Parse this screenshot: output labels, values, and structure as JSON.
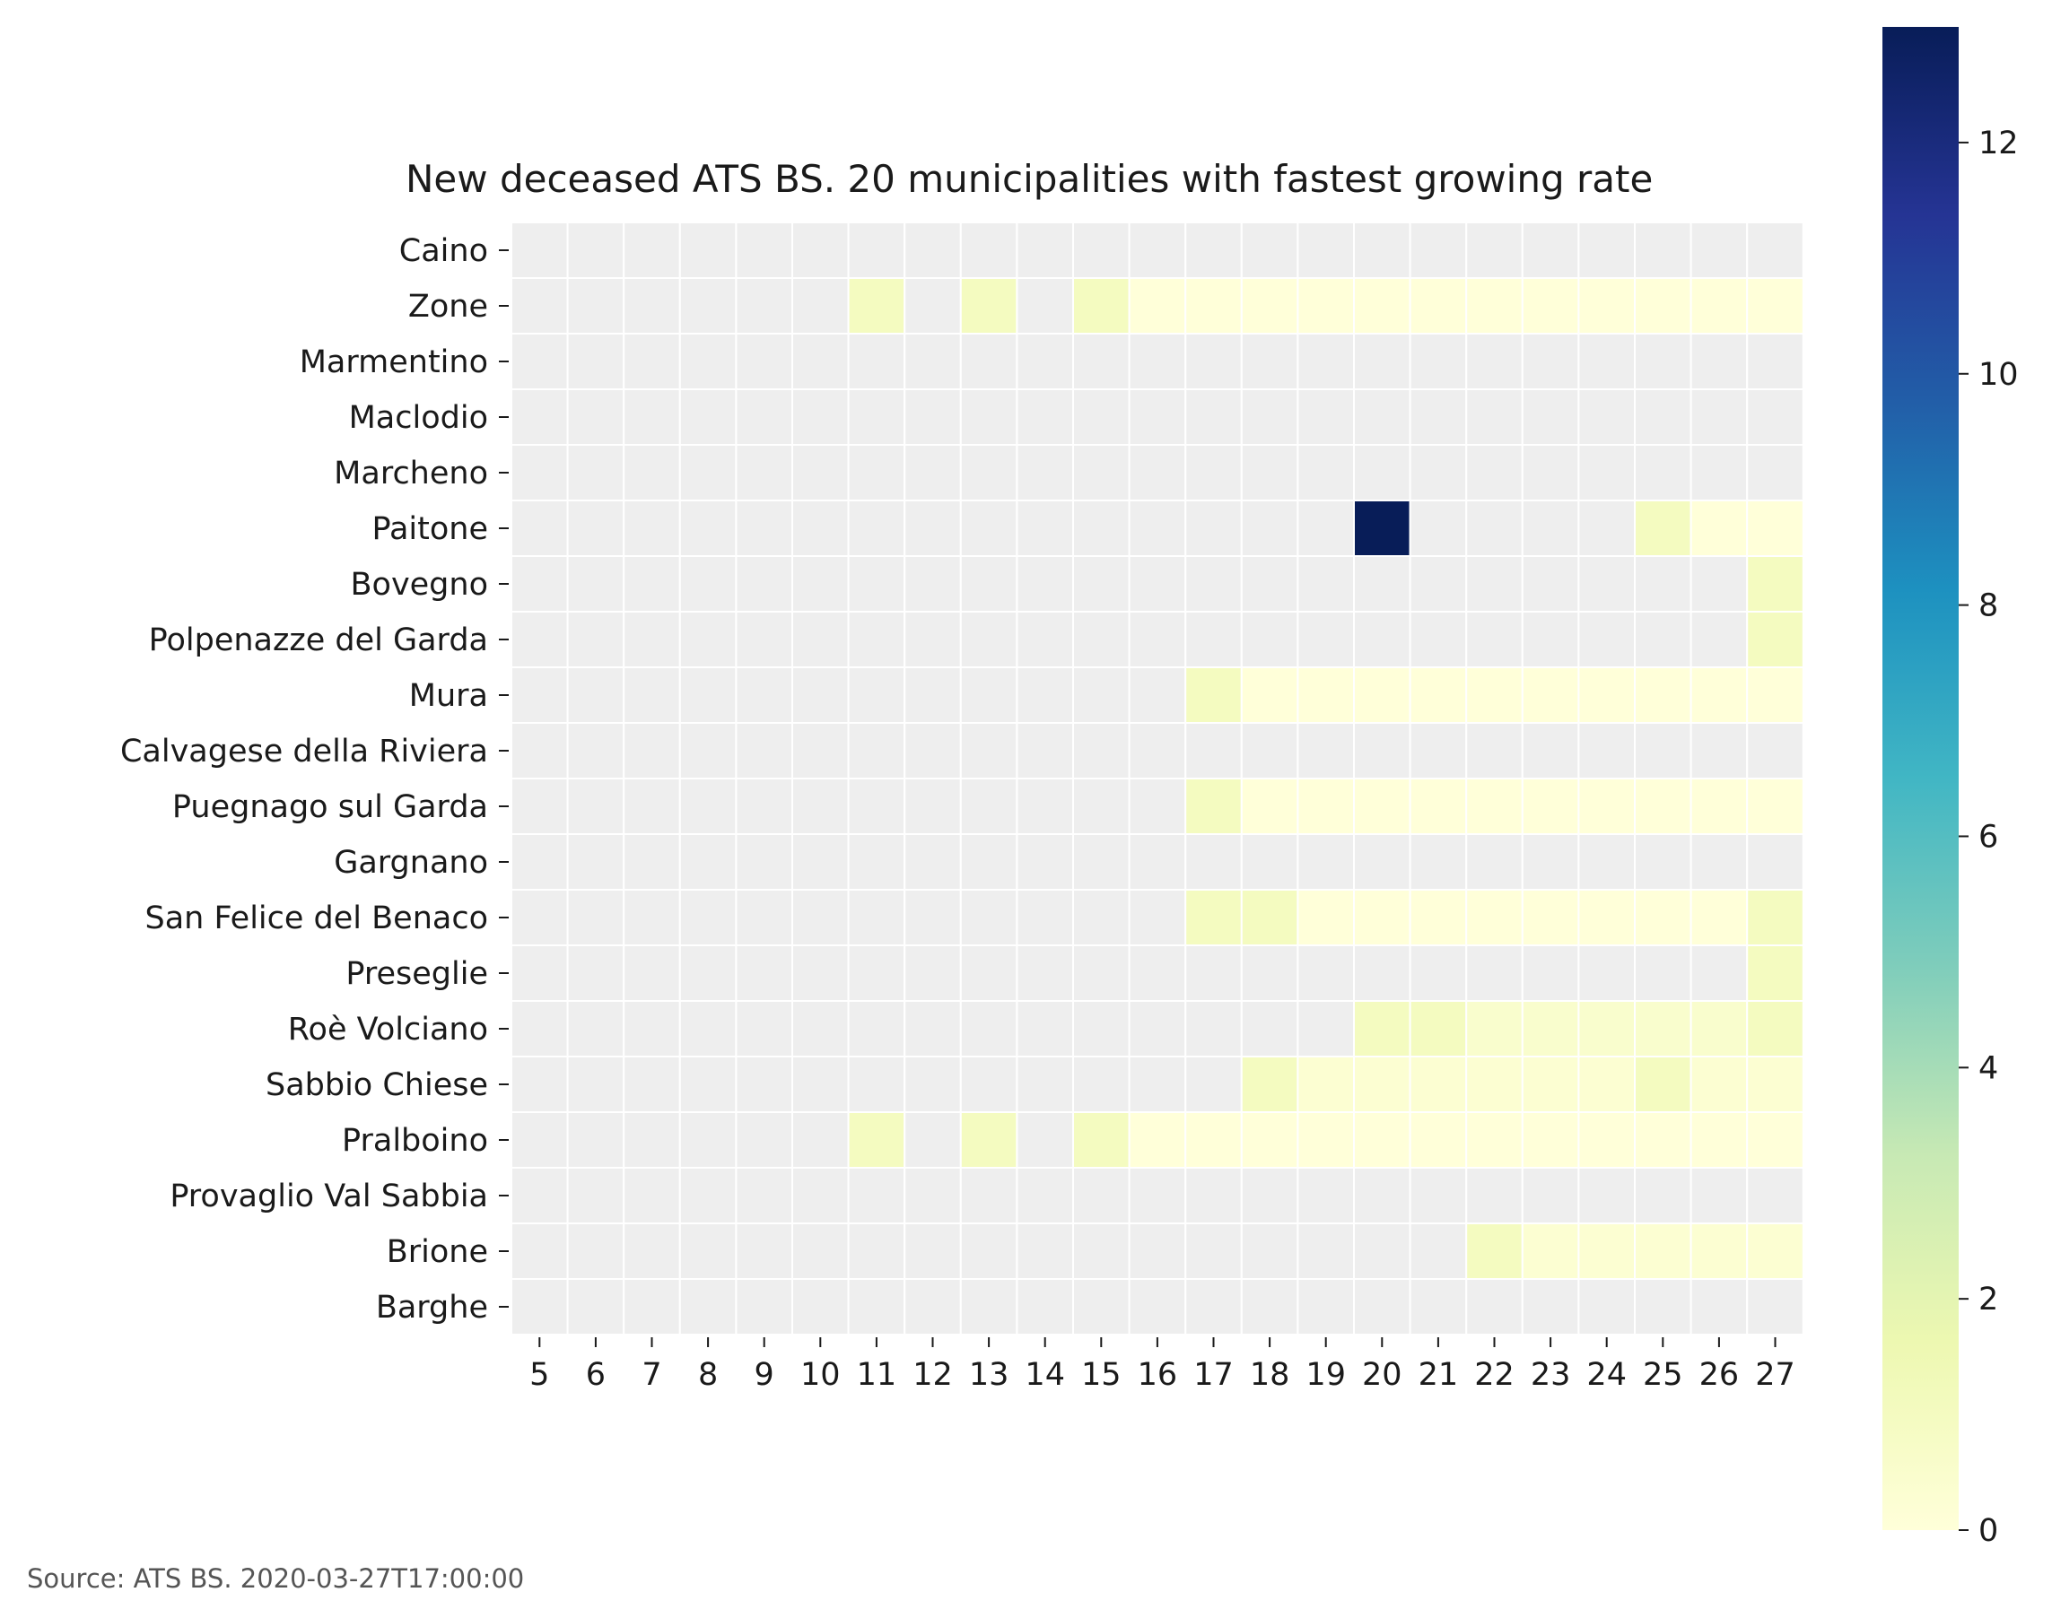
{
  "chart_data": {
    "type": "heatmap",
    "title": "New deceased ATS BS. 20 municipalities with fastest growing rate",
    "xlabel": "",
    "ylabel": "",
    "x": [
      "5",
      "6",
      "7",
      "8",
      "9",
      "10",
      "11",
      "12",
      "13",
      "14",
      "15",
      "16",
      "17",
      "18",
      "19",
      "20",
      "21",
      "22",
      "23",
      "24",
      "25",
      "26",
      "27"
    ],
    "y": [
      "Caino",
      "Zone",
      "Marmentino",
      "Maclodio",
      "Marcheno",
      "Paitone",
      "Bovegno",
      "Polpenazze del Garda",
      "Mura",
      "Calvagese della Riviera",
      "Puegnago sul Garda",
      "Gargnano",
      "San Felice del Benaco",
      "Preseglie",
      "Roè Volciano",
      "Sabbio Chiese",
      "Pralboino",
      "Provaglio Val Sabbia",
      "Brione",
      "Barghe"
    ],
    "values": [
      [
        null,
        null,
        null,
        null,
        null,
        null,
        null,
        null,
        null,
        null,
        null,
        null,
        null,
        null,
        null,
        null,
        null,
        null,
        null,
        null,
        null,
        null,
        null
      ],
      [
        null,
        null,
        null,
        null,
        null,
        null,
        1,
        null,
        1,
        null,
        1,
        0,
        0,
        0,
        0,
        0,
        0,
        0,
        0,
        0,
        0,
        0,
        0
      ],
      [
        null,
        null,
        null,
        null,
        null,
        null,
        null,
        null,
        null,
        null,
        null,
        null,
        null,
        null,
        null,
        null,
        null,
        null,
        null,
        null,
        null,
        null,
        null
      ],
      [
        null,
        null,
        null,
        null,
        null,
        null,
        null,
        null,
        null,
        null,
        null,
        null,
        null,
        null,
        null,
        null,
        null,
        null,
        null,
        null,
        null,
        null,
        null
      ],
      [
        null,
        null,
        null,
        null,
        null,
        null,
        null,
        null,
        null,
        null,
        null,
        null,
        null,
        null,
        null,
        null,
        null,
        null,
        null,
        null,
        null,
        null,
        null
      ],
      [
        null,
        null,
        null,
        null,
        null,
        null,
        null,
        null,
        null,
        null,
        null,
        null,
        null,
        null,
        null,
        13,
        null,
        null,
        null,
        null,
        1,
        0,
        0
      ],
      [
        null,
        null,
        null,
        null,
        null,
        null,
        null,
        null,
        null,
        null,
        null,
        null,
        null,
        null,
        null,
        null,
        null,
        null,
        null,
        null,
        null,
        null,
        1
      ],
      [
        null,
        null,
        null,
        null,
        null,
        null,
        null,
        null,
        null,
        null,
        null,
        null,
        null,
        null,
        null,
        null,
        null,
        null,
        null,
        null,
        null,
        null,
        1
      ],
      [
        null,
        null,
        null,
        null,
        null,
        null,
        null,
        null,
        null,
        null,
        null,
        null,
        1,
        0,
        0,
        0,
        0,
        0,
        0,
        0,
        0,
        0,
        0
      ],
      [
        null,
        null,
        null,
        null,
        null,
        null,
        null,
        null,
        null,
        null,
        null,
        null,
        null,
        null,
        null,
        null,
        null,
        null,
        null,
        null,
        null,
        null,
        null
      ],
      [
        null,
        null,
        null,
        null,
        null,
        null,
        null,
        null,
        null,
        null,
        null,
        null,
        1,
        0,
        0,
        0,
        0,
        0,
        0,
        0,
        0,
        0,
        0
      ],
      [
        null,
        null,
        null,
        null,
        null,
        null,
        null,
        null,
        null,
        null,
        null,
        null,
        null,
        null,
        null,
        null,
        null,
        null,
        null,
        null,
        null,
        null,
        null
      ],
      [
        null,
        null,
        null,
        null,
        null,
        null,
        null,
        null,
        null,
        null,
        null,
        null,
        1,
        1,
        0,
        0,
        0,
        0,
        0,
        0,
        0,
        0,
        1
      ],
      [
        null,
        null,
        null,
        null,
        null,
        null,
        null,
        null,
        null,
        null,
        null,
        null,
        null,
        null,
        null,
        null,
        null,
        null,
        null,
        null,
        null,
        null,
        1
      ],
      [
        null,
        null,
        null,
        null,
        null,
        null,
        null,
        null,
        null,
        null,
        null,
        null,
        null,
        null,
        null,
        1,
        1,
        0.5,
        0.5,
        0.5,
        0.5,
        0.5,
        1
      ],
      [
        null,
        null,
        null,
        null,
        null,
        null,
        null,
        null,
        null,
        null,
        null,
        null,
        null,
        1,
        0.3,
        0.3,
        0.3,
        0.3,
        0.3,
        0.3,
        1,
        0.3,
        0.3
      ],
      [
        null,
        null,
        null,
        null,
        null,
        null,
        1,
        null,
        1,
        null,
        1,
        0,
        0,
        0,
        0,
        0,
        0,
        0,
        0,
        0,
        0,
        0,
        0
      ],
      [
        null,
        null,
        null,
        null,
        null,
        null,
        null,
        null,
        null,
        null,
        null,
        null,
        null,
        null,
        null,
        null,
        null,
        null,
        null,
        null,
        null,
        null,
        null
      ],
      [
        null,
        null,
        null,
        null,
        null,
        null,
        null,
        null,
        null,
        null,
        null,
        null,
        null,
        null,
        null,
        null,
        null,
        1,
        0.3,
        0.3,
        0.3,
        0.3,
        0.3
      ],
      [
        null,
        null,
        null,
        null,
        null,
        null,
        null,
        null,
        null,
        null,
        null,
        null,
        null,
        null,
        null,
        null,
        null,
        null,
        null,
        null,
        null,
        null,
        null
      ]
    ],
    "colorbar": {
      "colormap": "YlGnBu",
      "range": [
        0,
        13
      ],
      "ticks": [
        0,
        2,
        4,
        6,
        8,
        10,
        12
      ]
    },
    "missing_color": "#eeeeee",
    "grid_line_color": "#ffffff"
  },
  "source_text": "Source: ATS BS. 2020-03-27T17:00:00"
}
